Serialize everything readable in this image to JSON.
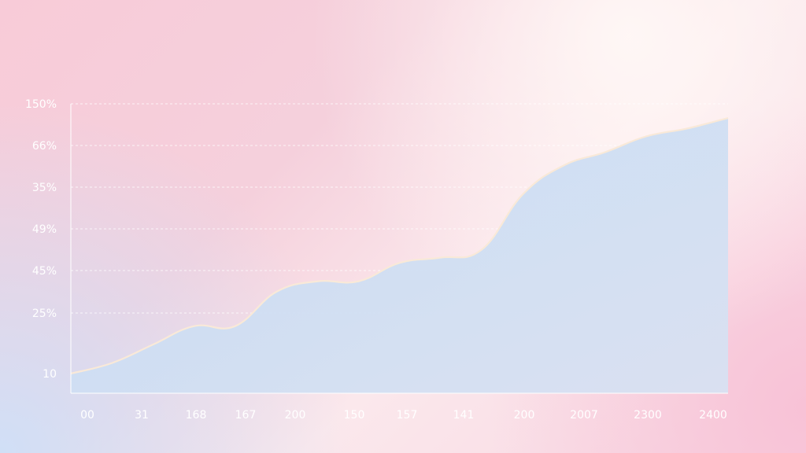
{
  "chart_data": {
    "type": "area",
    "title": "",
    "xlabel": "",
    "ylabel": "",
    "x_tick_labels": [
      "00",
      "31",
      "168",
      "167",
      "200",
      "150",
      "157",
      "141",
      "200",
      "2007",
      "2300",
      "2400"
    ],
    "y_tick_labels": [
      "10",
      "25%",
      "45%",
      "49%",
      "35%",
      "66%",
      "150%"
    ],
    "series": [
      {
        "values": [
          0.0,
          0.04,
          0.11,
          0.18,
          0.18,
          0.31,
          0.35,
          0.35,
          0.42,
          0.44,
          0.47,
          0.68,
          0.79,
          0.84,
          0.9,
          0.93,
          0.97
        ]
      }
    ],
    "ylim": [
      0,
      1
    ],
    "grid": true,
    "colors": {
      "fill": "#c9dcf3",
      "edge": "#f9e9d8",
      "axis": "#ffffff",
      "grid": "#ffffff",
      "text": "#ffffff"
    }
  }
}
